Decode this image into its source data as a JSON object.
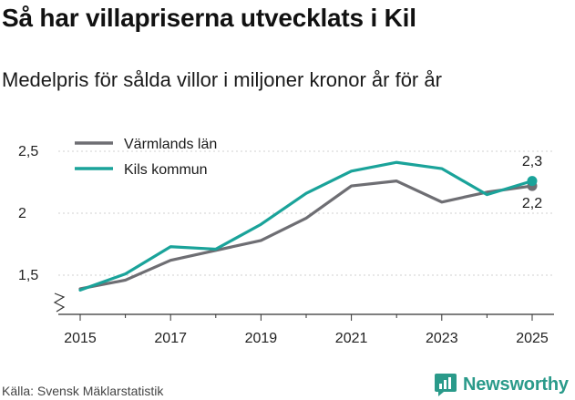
{
  "title": "Så har villapriserna utvecklats i Kil",
  "subtitle": "Medelpris för sålda villor i miljoner kronor år för år",
  "source": "Källa: Svensk Mäklarstatistik",
  "brand": "Newsworthy",
  "colors": {
    "varmland": "#6e6e73",
    "kil": "#1aa39a",
    "grid": "#d0d0d0",
    "brand": "#2a9a8a"
  },
  "chart_data": {
    "type": "line",
    "title": "Så har villapriserna utvecklats i Kil",
    "subtitle": "Medelpris för sålda villor i miljoner kronor år för år",
    "xlabel": "",
    "ylabel": "",
    "x": [
      2015,
      2016,
      2017,
      2018,
      2019,
      2020,
      2021,
      2022,
      2023,
      2024,
      2025
    ],
    "xticks": [
      2015,
      2017,
      2019,
      2021,
      2023,
      2025
    ],
    "xtick_labels": [
      "2015",
      "2017",
      "2019",
      "2021",
      "2023",
      "2025"
    ],
    "yticks": [
      1.5,
      2,
      2.5
    ],
    "ytick_labels": [
      "1,5",
      "2",
      "2,5"
    ],
    "ylim": [
      1.25,
      2.55
    ],
    "xlim": [
      2014.6,
      2025.35
    ],
    "y_axis_break": true,
    "legend_position": "top-left",
    "series": [
      {
        "name": "Värmlands län",
        "color": "#6e6e73",
        "values": [
          1.39,
          1.46,
          1.62,
          1.7,
          1.78,
          1.96,
          2.22,
          2.26,
          2.09,
          2.17,
          2.22
        ],
        "end_label": "2,2"
      },
      {
        "name": "Kils kommun",
        "color": "#1aa39a",
        "values": [
          1.38,
          1.51,
          1.73,
          1.71,
          1.91,
          2.16,
          2.34,
          2.41,
          2.36,
          2.15,
          2.26
        ],
        "end_label": "2,3"
      }
    ]
  }
}
